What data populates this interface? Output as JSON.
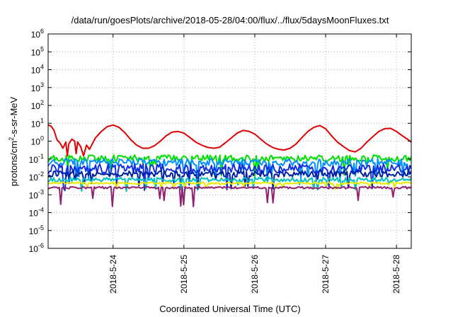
{
  "chart_data": {
    "type": "line",
    "title": "/data/run/goesPlots/archive/2018-05-28/04:00/flux/../flux/5daysMoonFluxes.txt",
    "xlabel": "Coordinated Universal Time (UTC)",
    "ylabel": "protons/cm²-s-sr-MeV",
    "y_scale": "log",
    "ylim": [
      1e-06,
      1000000.0
    ],
    "y_ticks": [
      {
        "value": 1e-06,
        "base": "10",
        "exp": "-6"
      },
      {
        "value": 1e-05,
        "base": "10",
        "exp": "-5"
      },
      {
        "value": 0.0001,
        "base": "10",
        "exp": "-4"
      },
      {
        "value": 0.001,
        "base": "10",
        "exp": "-3"
      },
      {
        "value": 0.01,
        "base": "10",
        "exp": "-2"
      },
      {
        "value": 0.1,
        "base": "10",
        "exp": "-1"
      },
      {
        "value": 1,
        "base": "10",
        "exp": "0"
      },
      {
        "value": 10,
        "base": "10",
        "exp": "1"
      },
      {
        "value": 100,
        "base": "10",
        "exp": "2"
      },
      {
        "value": 1000,
        "base": "10",
        "exp": "3"
      },
      {
        "value": 10000,
        "base": "10",
        "exp": "4"
      },
      {
        "value": 100000,
        "base": "10",
        "exp": "5"
      },
      {
        "value": 1000000,
        "base": "10",
        "exp": "6"
      }
    ],
    "xlim": [
      "2018-05-23 02:00",
      "2018-05-28 05:00"
    ],
    "x_ticks": [
      "2018-5-24",
      "2018-5-25",
      "2018-5-26",
      "2018-5-27",
      "2018-5-28"
    ],
    "grid": true,
    "series": [
      {
        "color": "#e00000",
        "style": "main",
        "points": [
          [
            "2018-05-23 02:00",
            8.0
          ],
          [
            "2018-05-23 03:00",
            7.0
          ],
          [
            "2018-05-23 04:00",
            4.0
          ],
          [
            "2018-05-23 05:00",
            1.2
          ],
          [
            "2018-05-23 06:00",
            0.8
          ],
          [
            "2018-05-23 07:00",
            0.4
          ],
          [
            "2018-05-23 08:00",
            0.9
          ],
          [
            "2018-05-23 08:30",
            0.15
          ],
          [
            "2018-05-23 09:00",
            0.7
          ],
          [
            "2018-05-23 10:00",
            1.3
          ],
          [
            "2018-05-23 11:00",
            1.0
          ],
          [
            "2018-05-23 11:30",
            0.2
          ],
          [
            "2018-05-23 12:00",
            0.9
          ],
          [
            "2018-05-23 13:00",
            0.5
          ],
          [
            "2018-05-23 14:00",
            0.15
          ],
          [
            "2018-05-23 15:00",
            0.6
          ],
          [
            "2018-05-23 16:00",
            0.35
          ],
          [
            "2018-05-23 18:00",
            1.5
          ],
          [
            "2018-05-23 20:00",
            3.5
          ],
          [
            "2018-05-23 22:00",
            6.5
          ],
          [
            "2018-05-24 00:00",
            8.0
          ],
          [
            "2018-05-24 02:00",
            6.0
          ],
          [
            "2018-05-24 04:00",
            3.0
          ],
          [
            "2018-05-24 06:00",
            1.2
          ],
          [
            "2018-05-24 08:00",
            0.6
          ],
          [
            "2018-05-24 10:00",
            0.4
          ],
          [
            "2018-05-24 12:00",
            0.4
          ],
          [
            "2018-05-24 14:00",
            0.55
          ],
          [
            "2018-05-24 16:00",
            1.0
          ],
          [
            "2018-05-24 18:00",
            2.0
          ],
          [
            "2018-05-24 20:00",
            3.2
          ],
          [
            "2018-05-24 22:00",
            3.5
          ],
          [
            "2018-05-25 00:00",
            2.8
          ],
          [
            "2018-05-25 02:00",
            1.6
          ],
          [
            "2018-05-25 04:00",
            0.9
          ],
          [
            "2018-05-25 06:00",
            0.6
          ],
          [
            "2018-05-25 08:00",
            0.45
          ],
          [
            "2018-05-25 10:00",
            0.4
          ],
          [
            "2018-05-25 12:00",
            0.45
          ],
          [
            "2018-05-25 14:00",
            0.8
          ],
          [
            "2018-05-25 16:00",
            1.5
          ],
          [
            "2018-05-25 18:00",
            2.8
          ],
          [
            "2018-05-25 20:00",
            4.0
          ],
          [
            "2018-05-25 22:00",
            3.6
          ],
          [
            "2018-05-26 00:00",
            2.5
          ],
          [
            "2018-05-26 02:00",
            1.3
          ],
          [
            "2018-05-26 04:00",
            0.7
          ],
          [
            "2018-05-26 06:00",
            0.45
          ],
          [
            "2018-05-26 08:00",
            0.35
          ],
          [
            "2018-05-26 10:00",
            0.32
          ],
          [
            "2018-05-26 12:00",
            0.4
          ],
          [
            "2018-05-26 14:00",
            0.7
          ],
          [
            "2018-05-26 16:00",
            1.6
          ],
          [
            "2018-05-26 18:00",
            3.5
          ],
          [
            "2018-05-26 20:00",
            6.0
          ],
          [
            "2018-05-26 22:00",
            7.5
          ],
          [
            "2018-05-27 00:00",
            5.0
          ],
          [
            "2018-05-27 02:00",
            2.0
          ],
          [
            "2018-05-27 04:00",
            0.9
          ],
          [
            "2018-05-27 06:00",
            0.5
          ],
          [
            "2018-05-27 08:00",
            0.3
          ],
          [
            "2018-05-27 10:00",
            0.25
          ],
          [
            "2018-05-27 12:00",
            0.4
          ],
          [
            "2018-05-27 14:00",
            0.9
          ],
          [
            "2018-05-27 16:00",
            1.8
          ],
          [
            "2018-05-27 18:00",
            3.5
          ],
          [
            "2018-05-27 20:00",
            5.0
          ],
          [
            "2018-05-27 22:00",
            5.2
          ],
          [
            "2018-05-28 00:00",
            3.5
          ],
          [
            "2018-05-28 02:00",
            2.0
          ],
          [
            "2018-05-28 04:00",
            1.2
          ],
          [
            "2018-05-28 05:00",
            0.9
          ]
        ]
      },
      {
        "color": "#00e000",
        "style": "noisy",
        "base": 0.11,
        "noise": 0.38,
        "dip": 0.9
      },
      {
        "color": "#0090ff",
        "style": "noisy",
        "base": 0.065,
        "noise": 0.4,
        "dip": 1.0
      },
      {
        "color": "#1030e0",
        "style": "noisy",
        "base": 0.028,
        "noise": 0.55,
        "dip": 1.2
      },
      {
        "color": "#0020a0",
        "style": "noisy",
        "base": 0.015,
        "noise": 0.35,
        "dip": 0.8
      },
      {
        "color": "#00c0c0",
        "style": "noisy",
        "base": 0.007,
        "noise": 0.25,
        "dip": 0.6
      },
      {
        "color": "#e8e800",
        "style": "noisy",
        "base": 0.0045,
        "noise": 0.12,
        "dip": 0.3
      },
      {
        "color": "#902070",
        "style": "noisy",
        "base": 0.0025,
        "noise": 0.12,
        "dip": 1.2
      }
    ]
  }
}
